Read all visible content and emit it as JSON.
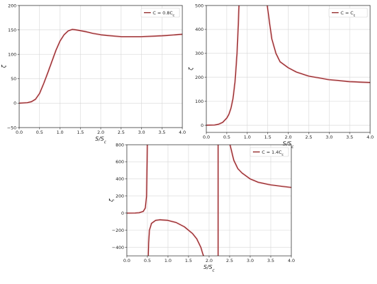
{
  "chart_data": [
    {
      "type": "line",
      "title": "",
      "xlabel": "S/S_c",
      "ylabel": "ζ",
      "xlim": [
        0,
        4
      ],
      "ylim": [
        -50,
        200
      ],
      "xticks": [
        "0.0",
        "0.5",
        "1.0",
        "1.5",
        "2.0",
        "2.5",
        "3.0",
        "3.5",
        "4.0"
      ],
      "yticks": [
        "−50",
        "0",
        "50",
        "100",
        "150",
        "200"
      ],
      "grid": true,
      "legend_position": "top-right",
      "series": [
        {
          "name": "C = 0.8C_c",
          "color": "#8b1a1a",
          "points": [
            [
              0,
              0
            ],
            [
              0.2,
              1
            ],
            [
              0.3,
              3
            ],
            [
              0.4,
              8
            ],
            [
              0.5,
              20
            ],
            [
              0.6,
              40
            ],
            [
              0.7,
              62
            ],
            [
              0.8,
              85
            ],
            [
              0.9,
              108
            ],
            [
              1.0,
              127
            ],
            [
              1.1,
              140
            ],
            [
              1.2,
              148
            ],
            [
              1.3,
              151
            ],
            [
              1.4,
              150
            ],
            [
              1.6,
              147
            ],
            [
              1.8,
              143
            ],
            [
              2.0,
              140
            ],
            [
              2.5,
              136
            ],
            [
              3.0,
              136
            ],
            [
              3.5,
              138
            ],
            [
              4.0,
              141
            ]
          ]
        }
      ]
    },
    {
      "type": "line",
      "title": "",
      "xlabel": "S/S_c",
      "ylabel": "ζ",
      "xlim": [
        0,
        4
      ],
      "ylim": [
        -30,
        500
      ],
      "xticks": [
        "0.0",
        "0.5",
        "1.0",
        "1.5",
        "2.0",
        "2.5",
        "3.0",
        "3.5",
        "4.0"
      ],
      "yticks": [
        "0",
        "100",
        "200",
        "300",
        "400",
        "500"
      ],
      "grid": true,
      "legend_position": "top-right",
      "series": [
        {
          "name": "C = C_c",
          "color": "#8b1a1a",
          "segments": [
            [
              [
                0,
                0
              ],
              [
                0.2,
                1
              ],
              [
                0.3,
                4
              ],
              [
                0.4,
                12
              ],
              [
                0.5,
                30
              ],
              [
                0.55,
                45
              ],
              [
                0.6,
                70
              ],
              [
                0.65,
                110
              ],
              [
                0.7,
                180
              ],
              [
                0.75,
                300
              ],
              [
                0.78,
                420
              ],
              [
                0.8,
                510
              ]
            ],
            [
              [
                1.48,
                510
              ],
              [
                1.55,
                420
              ],
              [
                1.6,
                360
              ],
              [
                1.7,
                300
              ],
              [
                1.8,
                265
              ],
              [
                2.0,
                240
              ],
              [
                2.2,
                222
              ],
              [
                2.5,
                205
              ],
              [
                3.0,
                190
              ],
              [
                3.5,
                182
              ],
              [
                4.0,
                178
              ]
            ]
          ]
        }
      ]
    },
    {
      "type": "line",
      "title": "",
      "xlabel": "S/S_c",
      "ylabel": "ζ",
      "xlim": [
        0,
        4
      ],
      "ylim": [
        -500,
        800
      ],
      "xticks": [
        "0.0",
        "0.5",
        "1.0",
        "1.5",
        "2.0",
        "2.5",
        "3.0",
        "3.5",
        "4.0"
      ],
      "yticks": [
        "−400",
        "−200",
        "0",
        "200",
        "400",
        "600",
        "800"
      ],
      "grid": true,
      "legend_position": "top-right",
      "series": [
        {
          "name": "C = 1.4C_c",
          "color": "#8b1a1a",
          "segments": [
            [
              [
                0,
                0
              ],
              [
                0.2,
                1
              ],
              [
                0.3,
                5
              ],
              [
                0.4,
                20
              ],
              [
                0.45,
                60
              ],
              [
                0.48,
                200
              ],
              [
                0.5,
                820
              ]
            ],
            [
              [
                0.52,
                -520
              ],
              [
                0.53,
                -350
              ],
              [
                0.55,
                -200
              ],
              [
                0.6,
                -120
              ],
              [
                0.7,
                -85
              ],
              [
                0.8,
                -78
              ],
              [
                1.0,
                -85
              ],
              [
                1.2,
                -110
              ],
              [
                1.4,
                -160
              ],
              [
                1.6,
                -240
              ],
              [
                1.7,
                -300
              ],
              [
                1.8,
                -400
              ],
              [
                1.85,
                -480
              ],
              [
                1.88,
                -520
              ]
            ],
            [
              [
                2.22,
                -520
              ],
              [
                2.22,
                820
              ]
            ],
            [
              [
                2.5,
                820
              ],
              [
                2.6,
                620
              ],
              [
                2.7,
                520
              ],
              [
                2.8,
                470
              ],
              [
                3.0,
                400
              ],
              [
                3.2,
                360
              ],
              [
                3.5,
                330
              ],
              [
                4.0,
                300
              ]
            ]
          ]
        }
      ]
    }
  ]
}
